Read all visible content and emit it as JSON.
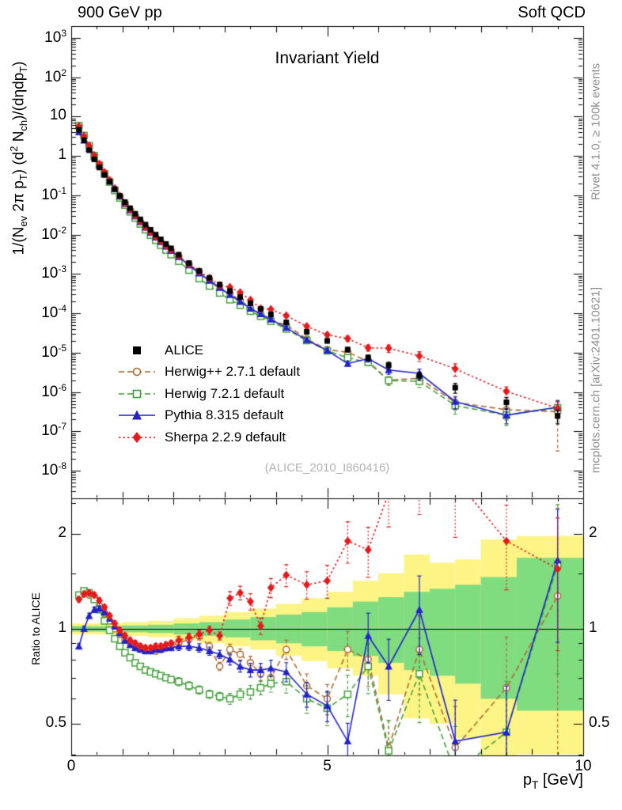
{
  "header": {
    "left": "900 GeV pp",
    "right": "Soft QCD"
  },
  "watermarks": {
    "analysis": "(ALICE_2010_I860416)",
    "right_top": "Rivet 4.1.0, ≥ 100k events",
    "right_bottom": "mcplots.cern.ch [arXiv:2401.10621]"
  },
  "chart_data": {
    "type": "scatter",
    "title": "Invariant Yield",
    "xlabel": "p_{T} [GeV]",
    "ylabel_main": "1/(N_{ev} 2π p_{T}) (d^{2} N_{ch})/(dηdp_{T})",
    "ylabel_ratio": "Ratio to ALICE",
    "xlim": [
      0,
      10
    ],
    "ylim_main_log10": [
      -8.7,
      3.3
    ],
    "ylim_ratio": [
      0.3967,
      2.594
    ],
    "x_ticks": [
      {
        "v": 0,
        "label": "0"
      },
      {
        "v": 5,
        "label": "5"
      },
      {
        "v": 10,
        "label": "10"
      }
    ],
    "y_ticks_main": [
      {
        "v": 1000,
        "label": "10^{3}"
      },
      {
        "v": 100,
        "label": "10^{2}"
      },
      {
        "v": 10,
        "label": "10"
      },
      {
        "v": 1,
        "label": "1"
      },
      {
        "v": 0.1,
        "label": "10^{-1}"
      },
      {
        "v": 0.01,
        "label": "10^{-2}"
      },
      {
        "v": 0.001,
        "label": "10^{-3}"
      },
      {
        "v": 0.0001,
        "label": "10^{-4}"
      },
      {
        "v": 1e-05,
        "label": "10^{-5}"
      },
      {
        "v": 1e-06,
        "label": "10^{-6}"
      },
      {
        "v": 1e-07,
        "label": "10^{-7}"
      },
      {
        "v": 1e-08,
        "label": "10^{-8}"
      }
    ],
    "y_ticks_ratio": [
      {
        "v": 2,
        "label": "2"
      },
      {
        "v": 1,
        "label": "1"
      },
      {
        "v": 0.5,
        "label": "0.5"
      }
    ],
    "pt": [
      0.15,
      0.25,
      0.35,
      0.45,
      0.55,
      0.65,
      0.75,
      0.85,
      0.95,
      1.05,
      1.15,
      1.25,
      1.35,
      1.45,
      1.55,
      1.65,
      1.75,
      1.85,
      1.95,
      2.1,
      2.3,
      2.5,
      2.7,
      2.9,
      3.1,
      3.3,
      3.5,
      3.7,
      3.9,
      4.2,
      4.6,
      5.0,
      5.4,
      5.8,
      6.2,
      6.8,
      7.5,
      8.5,
      9.5
    ],
    "reference": {
      "name": "alice",
      "label": "ALICE",
      "color": "#000000",
      "marker": "square-filled",
      "line": "none",
      "y": [
        4.6,
        2.5,
        1.4,
        0.82,
        0.51,
        0.33,
        0.22,
        0.143,
        0.097,
        0.067,
        0.047,
        0.034,
        0.0245,
        0.018,
        0.0133,
        0.01,
        0.0076,
        0.0058,
        0.0045,
        0.0031,
        0.0019,
        0.0012,
        0.0008,
        0.00054,
        0.00037,
        0.00026,
        0.00018,
        0.00013,
        9.4e-05,
        5.9e-05,
        3.4e-05,
        2e-05,
        1.2e-05,
        7.5e-06,
        4.8e-06,
        2.6e-06,
        1.3e-06,
        5.5e-07,
        2.5e-07
      ],
      "err": [
        0.04,
        0.04,
        0.04,
        0.04,
        0.04,
        0.04,
        0.04,
        0.04,
        0.04,
        0.04,
        0.04,
        0.04,
        0.04,
        0.04,
        0.04,
        0.04,
        0.04,
        0.04,
        0.04,
        0.05,
        0.05,
        0.05,
        0.05,
        0.05,
        0.06,
        0.06,
        0.07,
        0.07,
        0.08,
        0.09,
        0.1,
        0.12,
        0.14,
        0.16,
        0.2,
        0.24,
        0.28,
        0.32,
        0.38
      ]
    },
    "series": [
      {
        "name": "herwigpp",
        "label": "Herwig++ 2.7.1 default",
        "color": "#b06a30",
        "marker": "circle-open",
        "line": "dashed",
        "ratio": [
          1.27,
          1.3,
          1.28,
          1.24,
          1.18,
          1.12,
          1.06,
          1.0,
          0.96,
          0.92,
          0.9,
          0.88,
          0.87,
          0.86,
          0.86,
          0.85,
          0.86,
          0.87,
          0.88,
          0.9,
          0.93,
          0.95,
          0.88,
          0.76,
          0.86,
          0.83,
          0.78,
          0.72,
          0.7,
          0.86,
          0.66,
          0.6,
          0.86,
          0.8,
          0.42,
          0.86,
          0.42,
          0.65,
          1.27
        ],
        "err": [
          0.02,
          0.02,
          0.02,
          0.02,
          0.02,
          0.02,
          0.02,
          0.02,
          0.02,
          0.02,
          0.02,
          0.02,
          0.02,
          0.02,
          0.02,
          0.02,
          0.02,
          0.02,
          0.02,
          0.03,
          0.03,
          0.03,
          0.03,
          0.03,
          0.04,
          0.04,
          0.05,
          0.05,
          0.06,
          0.07,
          0.09,
          0.11,
          0.14,
          0.18,
          0.22,
          0.28,
          0.35,
          0.45,
          0.9
        ]
      },
      {
        "name": "herwig7",
        "label": "Herwig 7.2.1 default",
        "color": "#44a03c",
        "marker": "square-open",
        "line": "dashed",
        "ratio": [
          1.28,
          1.32,
          1.3,
          1.24,
          1.15,
          1.06,
          0.99,
          0.93,
          0.88,
          0.84,
          0.81,
          0.78,
          0.76,
          0.74,
          0.73,
          0.72,
          0.71,
          0.7,
          0.69,
          0.68,
          0.66,
          0.64,
          0.62,
          0.61,
          0.6,
          0.62,
          0.63,
          0.65,
          0.67,
          0.68,
          0.6,
          0.56,
          0.62,
          0.76,
          0.41,
          0.72,
          0.35,
          0.47,
          1.6
        ],
        "err": [
          0.02,
          0.02,
          0.02,
          0.02,
          0.02,
          0.02,
          0.02,
          0.02,
          0.02,
          0.02,
          0.02,
          0.02,
          0.02,
          0.02,
          0.02,
          0.02,
          0.02,
          0.02,
          0.02,
          0.03,
          0.03,
          0.03,
          0.03,
          0.03,
          0.04,
          0.04,
          0.05,
          0.05,
          0.06,
          0.08,
          0.1,
          0.12,
          0.15,
          0.18,
          0.25,
          0.3,
          0.4,
          0.45,
          0.55
        ]
      },
      {
        "name": "pythia",
        "label": "Pythia 8.315 default",
        "color": "#2222cc",
        "marker": "triangle-filled",
        "line": "solid",
        "ratio": [
          0.88,
          1.0,
          1.1,
          1.15,
          1.16,
          1.13,
          1.08,
          1.02,
          0.97,
          0.92,
          0.89,
          0.87,
          0.86,
          0.85,
          0.85,
          0.86,
          0.86,
          0.87,
          0.87,
          0.88,
          0.88,
          0.87,
          0.85,
          0.83,
          0.8,
          0.76,
          0.74,
          0.74,
          0.75,
          0.73,
          0.62,
          0.57,
          0.44,
          0.95,
          0.76,
          1.15,
          0.44,
          0.47,
          1.65
        ],
        "err": [
          0.02,
          0.02,
          0.02,
          0.02,
          0.02,
          0.02,
          0.02,
          0.02,
          0.02,
          0.02,
          0.02,
          0.02,
          0.02,
          0.02,
          0.02,
          0.02,
          0.02,
          0.02,
          0.02,
          0.03,
          0.03,
          0.03,
          0.03,
          0.03,
          0.04,
          0.04,
          0.05,
          0.05,
          0.06,
          0.07,
          0.09,
          0.11,
          0.14,
          0.18,
          0.22,
          0.28,
          0.35,
          0.4,
          0.45
        ]
      },
      {
        "name": "sherpa",
        "label": "Sherpa 2.2.9 default",
        "color": "#e41a1c",
        "marker": "diamond-filled",
        "line": "dotted",
        "ratio": [
          1.24,
          1.29,
          1.3,
          1.28,
          1.23,
          1.17,
          1.1,
          1.04,
          0.99,
          0.95,
          0.92,
          0.9,
          0.88,
          0.87,
          0.87,
          0.88,
          0.88,
          0.89,
          0.9,
          0.92,
          0.94,
          0.96,
          0.99,
          0.95,
          1.25,
          1.3,
          1.22,
          1.02,
          1.35,
          1.48,
          1.38,
          1.42,
          1.9,
          1.78,
          2.7,
          3.2,
          3.0,
          1.9,
          1.55
        ],
        "err": [
          0.02,
          0.02,
          0.02,
          0.02,
          0.02,
          0.02,
          0.02,
          0.02,
          0.02,
          0.02,
          0.02,
          0.02,
          0.02,
          0.02,
          0.02,
          0.02,
          0.02,
          0.02,
          0.02,
          0.03,
          0.03,
          0.03,
          0.03,
          0.03,
          0.05,
          0.05,
          0.06,
          0.06,
          0.07,
          0.08,
          0.1,
          0.12,
          0.15,
          0.18,
          0.22,
          0.28,
          0.35,
          0.3,
          0.45
        ]
      }
    ],
    "bands": {
      "outer": {
        "color": "#fcf484",
        "steps": [
          [
            0,
            1,
            0.96,
            1.04
          ],
          [
            1,
            1.5,
            0.95,
            1.05
          ],
          [
            1.5,
            2,
            0.94,
            1.06
          ],
          [
            2,
            2.5,
            0.92,
            1.08
          ],
          [
            2.5,
            3,
            0.9,
            1.1
          ],
          [
            3,
            3.5,
            0.88,
            1.13
          ],
          [
            3.5,
            4,
            0.86,
            1.16
          ],
          [
            4,
            4.5,
            0.82,
            1.2
          ],
          [
            4.5,
            5,
            0.79,
            1.25
          ],
          [
            5,
            5.5,
            0.75,
            1.31
          ],
          [
            5.5,
            6,
            0.71,
            1.42
          ],
          [
            6,
            6.5,
            0.62,
            1.5
          ],
          [
            6.5,
            7,
            0.52,
            1.72
          ],
          [
            7,
            7.5,
            0.5,
            1.62
          ],
          [
            7.5,
            8,
            0.45,
            1.66
          ],
          [
            8,
            8.7,
            0.35,
            1.92
          ],
          [
            8.7,
            10,
            0.4,
            1.97
          ]
        ]
      },
      "inner": {
        "color": "#7fdc7f",
        "steps": [
          [
            0,
            1,
            0.98,
            1.02
          ],
          [
            1,
            1.5,
            0.975,
            1.025
          ],
          [
            1.5,
            2,
            0.97,
            1.03
          ],
          [
            2,
            2.5,
            0.96,
            1.04
          ],
          [
            2.5,
            3,
            0.95,
            1.05
          ],
          [
            3,
            3.5,
            0.94,
            1.07
          ],
          [
            3.5,
            4,
            0.92,
            1.09
          ],
          [
            4,
            4.5,
            0.9,
            1.11
          ],
          [
            4.5,
            5,
            0.88,
            1.13
          ],
          [
            5,
            5.5,
            0.85,
            1.17
          ],
          [
            5.5,
            6,
            0.82,
            1.22
          ],
          [
            6,
            6.5,
            0.78,
            1.26
          ],
          [
            6.5,
            7,
            0.74,
            1.31
          ],
          [
            7,
            7.5,
            0.71,
            1.34
          ],
          [
            7.5,
            8,
            0.67,
            1.38
          ],
          [
            8,
            8.7,
            0.6,
            1.46
          ],
          [
            8.7,
            10,
            0.55,
            1.68
          ]
        ]
      }
    }
  }
}
